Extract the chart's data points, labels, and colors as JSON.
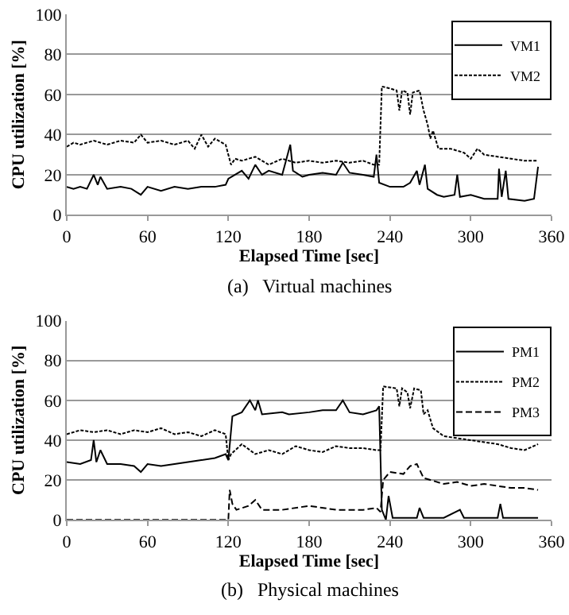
{
  "chart_data": [
    {
      "type": "line",
      "xlabel": "Elapsed Time [sec]",
      "ylabel": "CPU utilization [%]",
      "annotations": [
        "(a)   Virtual machines"
      ],
      "xlim": [
        0,
        360
      ],
      "ylim": [
        0,
        100
      ],
      "xticks": [
        0,
        60,
        120,
        180,
        240,
        300,
        360
      ],
      "yticks": [
        0,
        20,
        40,
        60,
        80,
        100
      ],
      "grid": "y",
      "legend": "top right",
      "marker": "none",
      "series": [
        {
          "name": "VM1",
          "color": "#000000",
          "line_style": "solid",
          "x": [
            0,
            5,
            10,
            15,
            20,
            23,
            25,
            30,
            40,
            48,
            55,
            60,
            70,
            80,
            90,
            100,
            110,
            118,
            120,
            125,
            130,
            135,
            140,
            145,
            150,
            160,
            166,
            168,
            175,
            180,
            190,
            200,
            205,
            210,
            220,
            228,
            230,
            232,
            240,
            250,
            255,
            260,
            262,
            266,
            268,
            275,
            280,
            288,
            290,
            292,
            300,
            310,
            320,
            321,
            323,
            326,
            328,
            340,
            347,
            350
          ],
          "values": [
            14,
            13,
            14,
            13,
            20,
            15,
            19,
            13,
            14,
            13,
            10,
            14,
            12,
            14,
            13,
            14,
            14,
            15,
            18,
            20,
            22,
            18,
            25,
            20,
            22,
            20,
            35,
            22,
            19,
            20,
            21,
            20,
            26,
            21,
            20,
            19,
            30,
            16,
            14,
            14,
            16,
            22,
            15,
            25,
            13,
            10,
            9,
            10,
            20,
            9,
            10,
            8,
            8,
            23,
            9,
            22,
            8,
            7,
            8,
            24
          ]
        },
        {
          "name": "VM2",
          "color": "#000000",
          "line_style": "dotted",
          "x": [
            0,
            5,
            10,
            20,
            30,
            40,
            50,
            55,
            60,
            70,
            80,
            90,
            95,
            100,
            105,
            110,
            118,
            120,
            122,
            125,
            130,
            140,
            150,
            160,
            170,
            180,
            190,
            200,
            210,
            220,
            228,
            232,
            234,
            240,
            245,
            247,
            249,
            253,
            255,
            257,
            262,
            265,
            268,
            270,
            272,
            276,
            285,
            295,
            300,
            305,
            310,
            320,
            330,
            340,
            350
          ],
          "values": [
            34,
            36,
            35,
            37,
            35,
            37,
            36,
            40,
            36,
            37,
            35,
            37,
            33,
            40,
            34,
            38,
            35,
            30,
            25,
            28,
            27,
            29,
            25,
            28,
            26,
            27,
            26,
            27,
            26,
            27,
            25,
            25,
            64,
            63,
            62,
            52,
            62,
            61,
            50,
            61,
            62,
            52,
            45,
            38,
            42,
            33,
            33,
            31,
            28,
            33,
            30,
            29,
            28,
            27,
            27
          ]
        }
      ]
    },
    {
      "type": "line",
      "xlabel": "Elapsed Time [sec]",
      "ylabel": "CPU utilization [%]",
      "annotations": [
        "(b)   Physical machines"
      ],
      "xlim": [
        0,
        360
      ],
      "ylim": [
        0,
        100
      ],
      "xticks": [
        0,
        60,
        120,
        180,
        240,
        300,
        360
      ],
      "yticks": [
        0,
        20,
        40,
        60,
        80,
        100
      ],
      "grid": "y",
      "legend": "top right",
      "marker": "none",
      "series": [
        {
          "name": "PM1",
          "color": "#000000",
          "line_style": "solid",
          "x": [
            0,
            10,
            18,
            20,
            22,
            25,
            30,
            40,
            50,
            55,
            60,
            70,
            80,
            90,
            100,
            110,
            118,
            120,
            123,
            130,
            136,
            140,
            142,
            145,
            160,
            165,
            180,
            190,
            200,
            205,
            210,
            220,
            230,
            232,
            234,
            237,
            239,
            242,
            260,
            262,
            265,
            280,
            292,
            295,
            320,
            322,
            324,
            350
          ],
          "values": [
            29,
            28,
            30,
            40,
            29,
            35,
            28,
            28,
            27,
            24,
            28,
            27,
            28,
            29,
            30,
            31,
            33,
            30,
            52,
            54,
            60,
            55,
            60,
            53,
            54,
            53,
            54,
            55,
            55,
            60,
            54,
            53,
            55,
            57,
            5,
            0,
            12,
            1,
            1,
            6,
            1,
            1,
            5,
            1,
            1,
            8,
            1,
            1
          ]
        },
        {
          "name": "PM2",
          "color": "#000000",
          "line_style": "dotted",
          "x": [
            0,
            10,
            20,
            30,
            40,
            50,
            60,
            70,
            80,
            90,
            100,
            110,
            118,
            120,
            122,
            130,
            140,
            150,
            160,
            170,
            180,
            190,
            200,
            210,
            220,
            230,
            233,
            235,
            245,
            247,
            249,
            253,
            255,
            258,
            263,
            265,
            268,
            272,
            280,
            290,
            300,
            310,
            320,
            330,
            340,
            350
          ],
          "values": [
            43,
            45,
            44,
            45,
            43,
            45,
            44,
            46,
            43,
            44,
            42,
            45,
            43,
            30,
            33,
            38,
            33,
            35,
            33,
            37,
            35,
            34,
            37,
            36,
            36,
            35,
            35,
            67,
            66,
            57,
            66,
            64,
            56,
            66,
            65,
            53,
            55,
            46,
            42,
            41,
            40,
            39,
            38,
            36,
            35,
            38
          ]
        },
        {
          "name": "PM3",
          "color": "#000000",
          "line_style": "dashed",
          "x": [
            0,
            120,
            121,
            123,
            126,
            135,
            140,
            145,
            160,
            180,
            200,
            220,
            230,
            233,
            235,
            240,
            250,
            255,
            260,
            265,
            270,
            280,
            290,
            300,
            310,
            320,
            330,
            340,
            350
          ],
          "values": [
            0,
            0,
            15,
            8,
            5,
            7,
            10,
            5,
            5,
            7,
            5,
            5,
            6,
            4,
            20,
            24,
            23,
            27,
            28,
            21,
            20,
            18,
            19,
            17,
            18,
            17,
            16,
            16,
            15
          ]
        }
      ]
    }
  ]
}
